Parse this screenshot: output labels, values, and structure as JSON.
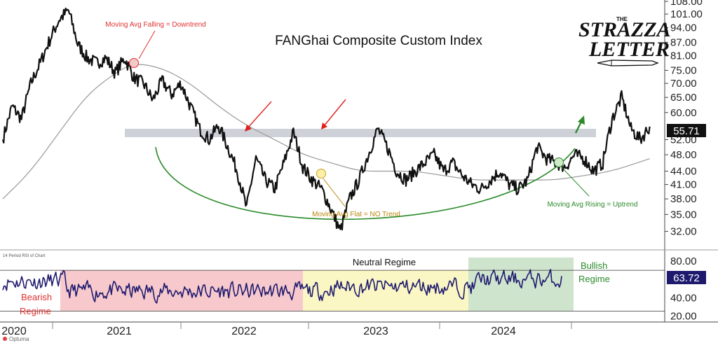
{
  "chart_data": [
    {
      "type": "line",
      "title": "FANGhai Composite Custom Index",
      "logo": {
        "top": "THE",
        "line1": "STRAZZA",
        "line2": "LETTER"
      },
      "y_ticks": [
        "32.00",
        "35.00",
        "38.00",
        "41.00",
        "44.00",
        "48.00",
        "52.00",
        "60.00",
        "65.00",
        "70.00",
        "75.00",
        "81.00",
        "87.00",
        "94.00",
        "101.00",
        "108.00"
      ],
      "ylim": [
        30,
        108
      ],
      "y_scale": "log",
      "x_years": [
        "2020",
        "2021",
        "2022",
        "2023",
        "2024"
      ],
      "last_value": "55.71",
      "price_points": [
        [
          "2020-01",
          52
        ],
        [
          "2020-02",
          62
        ],
        [
          "2020-03",
          58
        ],
        [
          "2020-04",
          70
        ],
        [
          "2020-05",
          78
        ],
        [
          "2020-06",
          88
        ],
        [
          "2020-07",
          98
        ],
        [
          "2020-08",
          103
        ],
        [
          "2020-09",
          86
        ],
        [
          "2020-10",
          80
        ],
        [
          "2020-11",
          78
        ],
        [
          "2020-12",
          80
        ],
        [
          "2021-01",
          74
        ],
        [
          "2021-02",
          80
        ],
        [
          "2021-03",
          72
        ],
        [
          "2021-04",
          70
        ],
        [
          "2021-05",
          64
        ],
        [
          "2021-06",
          71
        ],
        [
          "2021-07",
          66
        ],
        [
          "2021-08",
          70
        ],
        [
          "2021-09",
          62
        ],
        [
          "2021-10",
          55
        ],
        [
          "2021-11",
          52
        ],
        [
          "2021-12",
          56
        ],
        [
          "2022-01",
          50
        ],
        [
          "2022-02",
          44
        ],
        [
          "2022-03",
          36
        ],
        [
          "2022-04",
          47
        ],
        [
          "2022-05",
          42
        ],
        [
          "2022-06",
          40
        ],
        [
          "2022-07",
          46
        ],
        [
          "2022-08",
          54
        ],
        [
          "2022-09",
          45
        ],
        [
          "2022-10",
          42
        ],
        [
          "2022-11",
          40
        ],
        [
          "2022-12",
          36
        ],
        [
          "2023-01",
          32
        ],
        [
          "2023-02",
          38
        ],
        [
          "2023-03",
          42
        ],
        [
          "2023-04",
          48
        ],
        [
          "2023-05",
          55
        ],
        [
          "2023-06",
          50
        ],
        [
          "2023-07",
          44
        ],
        [
          "2023-08",
          42
        ],
        [
          "2023-09",
          44
        ],
        [
          "2023-10",
          46
        ],
        [
          "2023-11",
          48
        ],
        [
          "2023-12",
          44
        ],
        [
          "2024-01",
          46
        ],
        [
          "2024-02",
          43
        ],
        [
          "2024-03",
          41
        ],
        [
          "2024-04",
          40
        ],
        [
          "2024-05",
          42
        ],
        [
          "2024-06",
          44
        ],
        [
          "2024-07",
          41
        ],
        [
          "2024-08",
          40
        ],
        [
          "2024-09",
          42
        ],
        [
          "2024-10",
          50
        ],
        [
          "2024-11",
          47
        ],
        [
          "2024-12",
          46
        ],
        [
          "2025-01",
          45
        ],
        [
          "2025-02",
          48
        ],
        [
          "2025-03",
          47
        ],
        [
          "2025-04",
          44
        ],
        [
          "2025-05",
          46
        ],
        [
          "2025-06",
          58
        ],
        [
          "2025-07",
          65
        ],
        [
          "2025-08",
          55
        ],
        [
          "2025-09",
          52
        ],
        [
          "2025-10",
          55.71
        ]
      ],
      "moving_average": [
        [
          "2020-01",
          38
        ],
        [
          "2020-04",
          44
        ],
        [
          "2020-07",
          54
        ],
        [
          "2020-10",
          66
        ],
        [
          "2021-01",
          74
        ],
        [
          "2021-03",
          78
        ],
        [
          "2021-06",
          76
        ],
        [
          "2021-09",
          70
        ],
        [
          "2021-12",
          62
        ],
        [
          "2022-03",
          56
        ],
        [
          "2022-06",
          52
        ],
        [
          "2022-09",
          48
        ],
        [
          "2022-12",
          46
        ],
        [
          "2023-03",
          44
        ],
        [
          "2023-06",
          44
        ],
        [
          "2023-09",
          44
        ],
        [
          "2023-12",
          43
        ],
        [
          "2024-03",
          42
        ],
        [
          "2024-06",
          42
        ],
        [
          "2024-09",
          42
        ],
        [
          "2024-12",
          42
        ],
        [
          "2025-03",
          43
        ],
        [
          "2025-06",
          44
        ],
        [
          "2025-10",
          47
        ]
      ],
      "resistance_level": 55,
      "annotations": [
        {
          "text": "Moving Avg Falling = Downtrend",
          "color": "#e03030"
        },
        {
          "text": "Moving Avg Flat = NO Trend",
          "color": "#b8860b"
        },
        {
          "text": "Moving Avg Rising = Uptrend",
          "color": "#2a8a2a"
        }
      ]
    },
    {
      "type": "line",
      "panel_label": "14 Period RSI of Chart",
      "y_ticks": [
        "20.00",
        "40.00",
        "60.00",
        "80.00"
      ],
      "ylim": [
        15,
        90
      ],
      "last_value": "63.72",
      "bands": [
        {
          "range": [
            "2020-07",
            "2022-11"
          ],
          "color": "#f7c9cc"
        },
        {
          "range": [
            "2022-11",
            "2024-03"
          ],
          "color": "#fbf7c4"
        },
        {
          "range": [
            "2024-03",
            "2025-11"
          ],
          "color": "#cfe4cc"
        }
      ],
      "levels": [
        70,
        30
      ],
      "labels": {
        "neutral": "Neutral Regime",
        "bullish_1": "Bullish",
        "bullish_2": "Regime",
        "bearish_1": "Bearish",
        "bearish_2": "Regime"
      }
    }
  ],
  "footer": {
    "brand": "Optuma"
  },
  "colors": {
    "line": "#111111",
    "rsi": "#1e1a6e",
    "ma": "#9a9a9a",
    "arc": "#2a8a2a",
    "arrow": "#e02020",
    "band": "#b9bec8"
  }
}
